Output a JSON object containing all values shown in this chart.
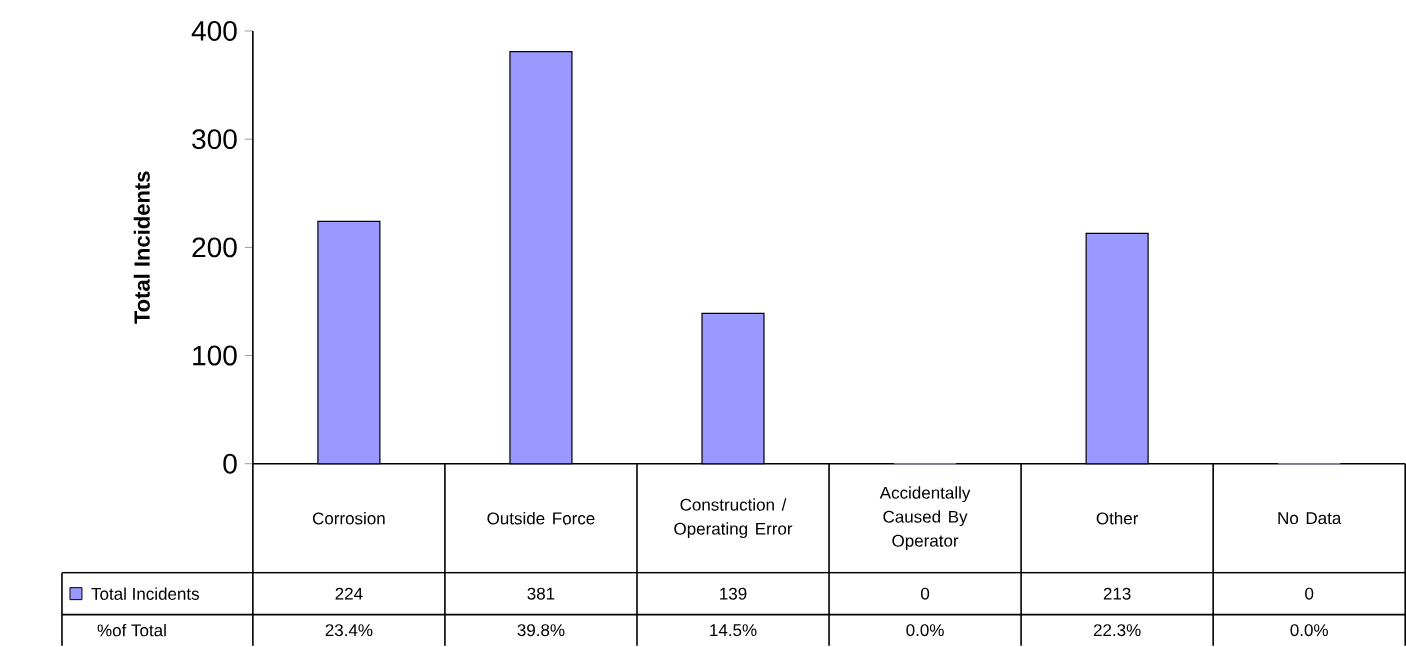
{
  "chart_data": {
    "type": "bar",
    "ylabel": "Total Incidents",
    "categories": [
      "Corrosion",
      "Outside Force",
      "Construction / Operating Error",
      "Accidentally Caused By Operator",
      "Other",
      "No Data"
    ],
    "series": [
      {
        "name": "Total Incidents",
        "color": "#9999ff",
        "values": [
          224,
          381,
          139,
          0,
          213,
          0
        ]
      }
    ],
    "ylim": [
      0,
      400
    ],
    "yticks": [
      0,
      100,
      200,
      300,
      400
    ],
    "data_labels": true,
    "legend": "bottom left",
    "annotations": [
      "%of Total",
      "23.4%",
      "39.8%",
      "14.5%",
      "0.0%",
      "22.3%",
      "0.0%"
    ]
  }
}
